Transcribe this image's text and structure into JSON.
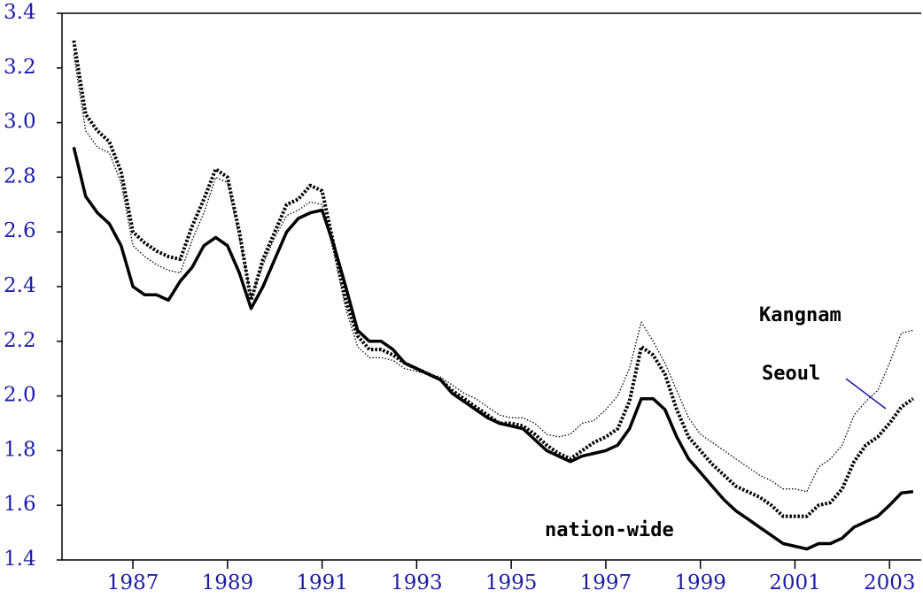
{
  "chart_data": {
    "type": "line",
    "x": [
      1985.75,
      1986,
      1986.25,
      1986.5,
      1986.75,
      1987,
      1987.25,
      1987.5,
      1987.75,
      1988,
      1988.25,
      1988.5,
      1988.75,
      1989,
      1989.25,
      1989.5,
      1989.75,
      1990,
      1990.25,
      1990.5,
      1990.75,
      1991,
      1991.25,
      1991.5,
      1991.75,
      1992,
      1992.25,
      1992.5,
      1992.75,
      1993,
      1993.25,
      1993.5,
      1993.75,
      1994,
      1994.25,
      1994.5,
      1994.75,
      1995,
      1995.25,
      1995.5,
      1995.75,
      1996,
      1996.25,
      1996.5,
      1996.75,
      1997,
      1997.25,
      1997.5,
      1997.75,
      1998,
      1998.25,
      1998.5,
      1998.75,
      1999,
      1999.25,
      1999.5,
      1999.75,
      2000,
      2000.25,
      2000.5,
      2000.75,
      2001,
      2001.25,
      2001.5,
      2001.75,
      2002,
      2002.25,
      2002.5,
      2002.75,
      2003,
      2003.25,
      2003.5
    ],
    "series": [
      {
        "name": "nation-wide",
        "color": "#000000",
        "style": "solid",
        "values": [
          2.91,
          2.73,
          2.67,
          2.63,
          2.55,
          2.4,
          2.37,
          2.37,
          2.35,
          2.42,
          2.47,
          2.55,
          2.58,
          2.55,
          2.45,
          2.32,
          2.4,
          2.5,
          2.6,
          2.65,
          2.67,
          2.68,
          2.55,
          2.4,
          2.24,
          2.2,
          2.2,
          2.17,
          2.12,
          2.1,
          2.08,
          2.06,
          2.01,
          1.98,
          1.95,
          1.92,
          1.9,
          1.89,
          1.88,
          1.84,
          1.8,
          1.78,
          1.76,
          1.78,
          1.79,
          1.8,
          1.82,
          1.88,
          1.99,
          1.99,
          1.95,
          1.85,
          1.77,
          1.72,
          1.67,
          1.62,
          1.58,
          1.55,
          1.52,
          1.49,
          1.46,
          1.45,
          1.44,
          1.46,
          1.46,
          1.48,
          1.52,
          1.54,
          1.56,
          1.6,
          1.645,
          1.65
        ]
      },
      {
        "name": "Seoul",
        "color": "#000000",
        "style": "dotted-thick",
        "values": [
          3.3,
          3.03,
          2.97,
          2.93,
          2.82,
          2.6,
          2.56,
          2.53,
          2.51,
          2.5,
          2.62,
          2.72,
          2.83,
          2.8,
          2.6,
          2.35,
          2.5,
          2.6,
          2.7,
          2.72,
          2.77,
          2.75,
          2.55,
          2.35,
          2.22,
          2.17,
          2.17,
          2.15,
          2.12,
          2.1,
          2.08,
          2.06,
          2.02,
          1.99,
          1.96,
          1.93,
          1.9,
          1.9,
          1.89,
          1.86,
          1.82,
          1.79,
          1.77,
          1.8,
          1.83,
          1.85,
          1.88,
          1.98,
          2.18,
          2.15,
          2.08,
          1.95,
          1.85,
          1.8,
          1.75,
          1.71,
          1.67,
          1.65,
          1.63,
          1.6,
          1.56,
          1.56,
          1.56,
          1.6,
          1.61,
          1.66,
          1.76,
          1.82,
          1.85,
          1.9,
          1.96,
          1.99
        ]
      },
      {
        "name": "Kangnam",
        "color": "#000000",
        "style": "dotted-thin",
        "values": [
          3.25,
          2.97,
          2.91,
          2.89,
          2.78,
          2.55,
          2.51,
          2.48,
          2.46,
          2.45,
          2.57,
          2.67,
          2.8,
          2.78,
          2.58,
          2.36,
          2.48,
          2.58,
          2.66,
          2.68,
          2.71,
          2.7,
          2.52,
          2.32,
          2.18,
          2.14,
          2.14,
          2.13,
          2.1,
          2.09,
          2.08,
          2.07,
          2.04,
          2.01,
          1.99,
          1.96,
          1.93,
          1.92,
          1.92,
          1.9,
          1.86,
          1.85,
          1.86,
          1.9,
          1.91,
          1.95,
          2.0,
          2.1,
          2.27,
          2.2,
          2.12,
          2.02,
          1.92,
          1.86,
          1.83,
          1.8,
          1.77,
          1.74,
          1.71,
          1.69,
          1.66,
          1.66,
          1.65,
          1.74,
          1.77,
          1.82,
          1.93,
          1.98,
          2.02,
          2.12,
          2.23,
          2.24
        ]
      }
    ],
    "xlim": [
      1985.5,
      2003.67
    ],
    "xticks": [
      1987,
      1989,
      1991,
      1993,
      1995,
      1997,
      1999,
      2001,
      2003
    ],
    "ylim": [
      1.4,
      3.4
    ],
    "yticks": [
      1.4,
      1.6,
      1.8,
      {
        "value": 2,
        "label": "2.0"
      },
      2.2,
      2.4,
      2.6,
      2.8,
      {
        "value": 3,
        "label": "3.0"
      },
      3.2,
      3.4
    ],
    "tick_label_color": "#1c1ca8",
    "grid": false
  }
}
